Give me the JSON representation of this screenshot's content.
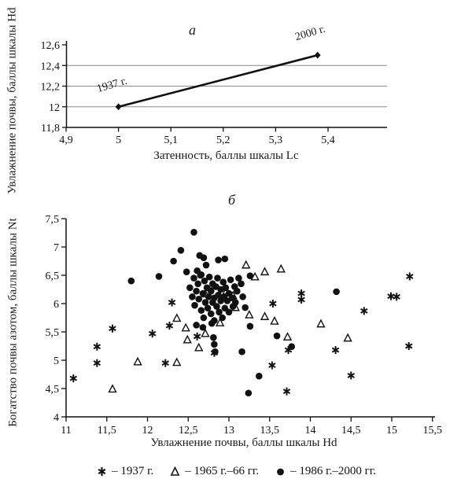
{
  "panels": {
    "a": {
      "title": "а",
      "xlabel": "Затенность, баллы шкалы Lc",
      "ylabel": "Увлажнение почвы, баллы шкалы Hd"
    },
    "b": {
      "title": "б",
      "xlabel": "Увлажнение почвы, баллы шкалы Hd",
      "ylabel": "Богатство почвы азотом, баллы шкалы Nt"
    }
  },
  "chart_data": [
    {
      "type": "line",
      "title": "а",
      "xlabel": "Затенность, баллы шкалы Lc",
      "ylabel": "Увлажнение почвы, баллы шкалы Hd",
      "xlim": [
        4.9,
        5.4
      ],
      "ylim": [
        11.8,
        12.6
      ],
      "grid": "horizontal",
      "gridlines_y": [
        12,
        12.2,
        12.4
      ],
      "xticks": [
        {
          "v": 4.9,
          "t": "4,9"
        },
        {
          "v": 5,
          "t": "5"
        },
        {
          "v": 5.1,
          "t": "5,1"
        },
        {
          "v": 5.2,
          "t": "5,2"
        },
        {
          "v": 5.3,
          "t": "5,3"
        },
        {
          "v": 5.4,
          "t": "5,4"
        }
      ],
      "yticks": [
        {
          "v": 11.8,
          "t": "11,8"
        },
        {
          "v": 12,
          "t": "12"
        },
        {
          "v": 12.2,
          "t": "12,2"
        },
        {
          "v": 12.4,
          "t": "12,4"
        },
        {
          "v": 12.6,
          "t": "12,6"
        }
      ],
      "points": [
        {
          "x": 5.0,
          "y": 12.0,
          "label": "1937 г."
        },
        {
          "x": 5.38,
          "y": 12.5,
          "label": "2000 г."
        }
      ]
    },
    {
      "type": "scatter",
      "title": "б",
      "xlabel": "Увлажнение почвы, баллы шкалы Hd",
      "ylabel": "Богатство почвы азотом, баллы шкалы Nt",
      "xlim": [
        11,
        15.5
      ],
      "ylim": [
        4,
        7.5
      ],
      "grid": "off",
      "xticks": [
        {
          "v": 11,
          "t": "11"
        },
        {
          "v": 11.5,
          "t": "11,5"
        },
        {
          "v": 12,
          "t": "12"
        },
        {
          "v": 12.5,
          "t": "12,5"
        },
        {
          "v": 13,
          "t": "13"
        },
        {
          "v": 13.5,
          "t": "13,5"
        },
        {
          "v": 14,
          "t": "14"
        },
        {
          "v": 14.5,
          "t": "14,5"
        },
        {
          "v": 15,
          "t": "15"
        },
        {
          "v": 15.5,
          "t": "15,5"
        }
      ],
      "yticks": [
        {
          "v": 4,
          "t": "4"
        },
        {
          "v": 4.5,
          "t": "4,5"
        },
        {
          "v": 5,
          "t": "5"
        },
        {
          "v": 5.5,
          "t": "5,5"
        },
        {
          "v": 6,
          "t": "6"
        },
        {
          "v": 6.5,
          "t": "6,5"
        },
        {
          "v": 7,
          "t": "7"
        },
        {
          "v": 7.5,
          "t": "7,5"
        }
      ],
      "series": [
        {
          "name": "1937 г.",
          "marker": "asterisk",
          "points": [
            [
              11.09,
              4.68
            ],
            [
              11.38,
              5.24
            ],
            [
              11.38,
              4.95
            ],
            [
              11.57,
              5.56
            ],
            [
              12.06,
              5.47
            ],
            [
              12.22,
              4.95
            ],
            [
              12.27,
              5.61
            ],
            [
              12.3,
              6.02
            ],
            [
              12.61,
              5.42
            ],
            [
              12.82,
              5.13
            ],
            [
              13.54,
              6.0
            ],
            [
              13.73,
              5.18
            ],
            [
              13.53,
              4.91
            ],
            [
              13.71,
              4.45
            ],
            [
              13.89,
              6.18
            ],
            [
              13.89,
              6.07
            ],
            [
              14.31,
              5.18
            ],
            [
              14.5,
              4.73
            ],
            [
              14.66,
              5.87
            ],
            [
              14.99,
              6.13
            ],
            [
              15.06,
              6.12
            ],
            [
              15.22,
              6.48
            ],
            [
              15.21,
              5.25
            ]
          ]
        },
        {
          "name": "1965 г.–66 гг.",
          "marker": "triangle-open",
          "points": [
            [
              11.57,
              4.49
            ],
            [
              11.88,
              4.97
            ],
            [
              12.36,
              4.96
            ],
            [
              12.36,
              5.74
            ],
            [
              12.47,
              5.57
            ],
            [
              12.49,
              5.36
            ],
            [
              12.63,
              5.22
            ],
            [
              12.71,
              5.47
            ],
            [
              12.89,
              5.66
            ],
            [
              12.71,
              6.17
            ],
            [
              12.8,
              6.33
            ],
            [
              12.97,
              6.22
            ],
            [
              13.05,
              6.14
            ],
            [
              13.08,
              5.93
            ],
            [
              13.25,
              5.8
            ],
            [
              13.21,
              6.68
            ],
            [
              13.32,
              6.47
            ],
            [
              13.44,
              6.56
            ],
            [
              13.64,
              6.61
            ],
            [
              13.44,
              5.77
            ],
            [
              13.56,
              5.69
            ],
            [
              13.72,
              5.41
            ],
            [
              14.13,
              5.64
            ],
            [
              14.46,
              5.39
            ]
          ]
        },
        {
          "name": "1986 г.–2000 гг.",
          "marker": "circle-filled",
          "points": [
            [
              11.8,
              6.4
            ],
            [
              12.14,
              6.48
            ],
            [
              12.32,
              6.75
            ],
            [
              12.41,
              6.94
            ],
            [
              12.57,
              7.26
            ],
            [
              12.48,
              6.56
            ],
            [
              12.64,
              6.85
            ],
            [
              12.69,
              6.81
            ],
            [
              12.87,
              6.77
            ],
            [
              12.95,
              6.79
            ],
            [
              12.72,
              6.68
            ],
            [
              12.61,
              6.58
            ],
            [
              12.66,
              6.51
            ],
            [
              13.26,
              6.49
            ],
            [
              13.26,
              5.6
            ],
            [
              13.16,
              5.15
            ],
            [
              13.37,
              4.72
            ],
            [
              13.24,
              4.42
            ],
            [
              13.59,
              5.43
            ],
            [
              13.77,
              5.24
            ],
            [
              14.32,
              6.21
            ],
            [
              12.79,
              5.65
            ],
            [
              12.81,
              5.4
            ],
            [
              12.82,
              5.28
            ],
            [
              12.83,
              5.15
            ],
            [
              12.6,
              5.62
            ],
            [
              12.68,
              5.58
            ],
            [
              12.52,
              6.28
            ],
            [
              12.55,
              6.12
            ],
            [
              12.57,
              6.45
            ],
            [
              12.58,
              5.97
            ],
            [
              12.6,
              6.22
            ],
            [
              12.62,
              6.35
            ],
            [
              12.63,
              6.08
            ],
            [
              12.65,
              6.5
            ],
            [
              12.66,
              5.88
            ],
            [
              12.68,
              6.18
            ],
            [
              12.69,
              5.75
            ],
            [
              12.7,
              6.4
            ],
            [
              12.71,
              6.02
            ],
            [
              12.73,
              6.28
            ],
            [
              12.74,
              5.92
            ],
            [
              12.75,
              6.12
            ],
            [
              12.76,
              6.47
            ],
            [
              12.78,
              5.82
            ],
            [
              12.78,
              6.22
            ],
            [
              12.8,
              6.02
            ],
            [
              12.8,
              6.35
            ],
            [
              12.82,
              5.7
            ],
            [
              12.82,
              6.1
            ],
            [
              12.84,
              6.3
            ],
            [
              12.85,
              5.95
            ],
            [
              12.86,
              6.45
            ],
            [
              12.87,
              6.15
            ],
            [
              12.88,
              5.85
            ],
            [
              12.9,
              6.25
            ],
            [
              12.9,
              6.05
            ],
            [
              12.92,
              5.75
            ],
            [
              12.93,
              6.38
            ],
            [
              12.94,
              6.12
            ],
            [
              12.95,
              5.92
            ],
            [
              12.96,
              6.28
            ],
            [
              12.98,
              6.05
            ],
            [
              13.0,
              5.85
            ],
            [
              13.0,
              6.18
            ],
            [
              13.02,
              6.42
            ],
            [
              13.04,
              6.1
            ],
            [
              13.05,
              5.95
            ],
            [
              13.07,
              6.3
            ],
            [
              13.08,
              6.02
            ],
            [
              13.1,
              6.22
            ],
            [
              13.12,
              6.45
            ],
            [
              13.15,
              6.35
            ],
            [
              13.17,
              6.12
            ],
            [
              13.2,
              5.93
            ]
          ]
        }
      ]
    }
  ],
  "legend": {
    "items": [
      {
        "marker": "asterisk",
        "label": "– 1937 г."
      },
      {
        "marker": "triangle-open",
        "label": "– 1965 г.–66 гг."
      },
      {
        "marker": "circle-filled",
        "label": "– 1986 г.–2000 гг."
      }
    ]
  },
  "colors": {
    "ink": "#111111",
    "gridline": "#8a8a8a",
    "background": "#ffffff"
  }
}
